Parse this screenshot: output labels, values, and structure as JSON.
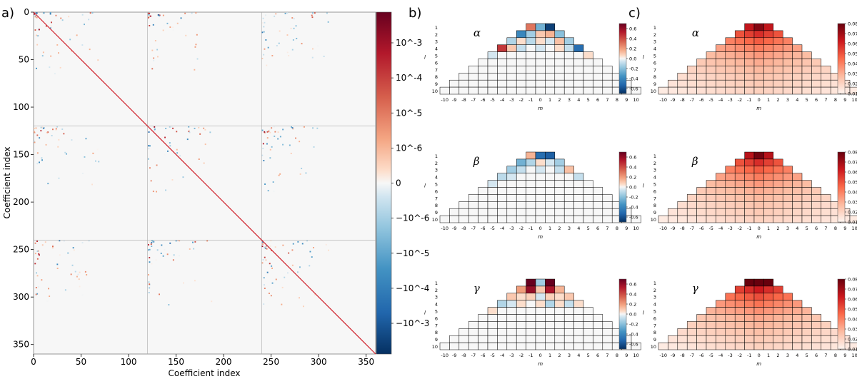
{
  "chart_data": [
    {
      "panel": "a)",
      "type": "heatmap",
      "title": "",
      "xlabel": "Coefficient index",
      "ylabel": "Coefficient index",
      "xlim": [
        0,
        360
      ],
      "ylim": [
        360,
        0
      ],
      "x_ticks": [
        "0",
        "50",
        "100",
        "150",
        "200",
        "250",
        "300",
        "350"
      ],
      "y_ticks": [
        "0",
        "50",
        "100",
        "150",
        "200",
        "250",
        "300",
        "350"
      ],
      "block_boundaries": [
        120,
        240
      ],
      "diagonal": "strong positive",
      "colorbar": {
        "scale": "symlog",
        "cmap": "RdBu_r",
        "ticks": [
          "10^-3",
          "10^-4",
          "10^-5",
          "10^-6",
          "0",
          "−10^-6",
          "−10^-5",
          "−10^-4",
          "−10^-3"
        ]
      }
    },
    {
      "panel": "b)",
      "type": "heatmap",
      "description_axis_x": "m",
      "description_axis_y": "l",
      "xlabel": "m",
      "ylabel": "l",
      "m_ticks": [
        "-10",
        "-9",
        "-8",
        "-7",
        "-6",
        "-5",
        "-4",
        "-3",
        "-2",
        "-1",
        "0",
        "1",
        "2",
        "3",
        "4",
        "5",
        "6",
        "7",
        "8",
        "9",
        "10"
      ],
      "l_ticks": [
        "1",
        "2",
        "3",
        "4",
        "5",
        "6",
        "7",
        "8",
        "9",
        "10"
      ],
      "colorbar": {
        "cmap": "RdBu_r",
        "vmin": -0.7,
        "vmax": 0.7,
        "ticks": [
          "0.6",
          "0.4",
          "0.2",
          "0.0",
          "-0.2",
          "-0.4",
          "-0.6"
        ]
      },
      "series": [
        {
          "name": "α",
          "cells": [
            [
              1,
              -1,
              0.3
            ],
            [
              1,
              0,
              -0.25
            ],
            [
              1,
              1,
              -0.65
            ],
            [
              2,
              -2,
              -0.4
            ],
            [
              2,
              -1,
              -0.15
            ],
            [
              2,
              0,
              0.1
            ],
            [
              2,
              1,
              0.15
            ],
            [
              2,
              2,
              -0.2
            ],
            [
              3,
              -3,
              -0.12
            ],
            [
              3,
              -2,
              0.05
            ],
            [
              3,
              -1,
              -0.1
            ],
            [
              3,
              0,
              0.05
            ],
            [
              3,
              1,
              -0.05
            ],
            [
              3,
              2,
              0.12
            ],
            [
              3,
              3,
              -0.15
            ],
            [
              4,
              -4,
              0.45
            ],
            [
              4,
              -3,
              0.1
            ],
            [
              4,
              -2,
              -0.08
            ],
            [
              4,
              0,
              -0.05
            ],
            [
              4,
              2,
              0.05
            ],
            [
              4,
              3,
              -0.08
            ],
            [
              4,
              4,
              -0.5
            ],
            [
              5,
              -5,
              -0.05
            ],
            [
              5,
              5,
              0.05
            ]
          ]
        },
        {
          "name": "β",
          "cells": [
            [
              1,
              -1,
              0.15
            ],
            [
              1,
              0,
              -0.5
            ],
            [
              1,
              1,
              -0.55
            ],
            [
              2,
              -2,
              -0.25
            ],
            [
              2,
              -1,
              -0.12
            ],
            [
              2,
              0,
              0.05
            ],
            [
              2,
              1,
              -0.05
            ],
            [
              2,
              2,
              -0.15
            ],
            [
              3,
              -3,
              -0.15
            ],
            [
              3,
              -2,
              -0.08
            ],
            [
              3,
              0,
              -0.05
            ],
            [
              3,
              2,
              -0.08
            ],
            [
              3,
              3,
              0.12
            ],
            [
              4,
              -4,
              -0.1
            ],
            [
              4,
              -3,
              -0.05
            ],
            [
              4,
              4,
              -0.08
            ],
            [
              5,
              -5,
              -0.05
            ]
          ]
        },
        {
          "name": "γ",
          "cells": [
            [
              1,
              -1,
              0.7
            ],
            [
              1,
              0,
              -0.15
            ],
            [
              1,
              1,
              0.7
            ],
            [
              2,
              -2,
              0.2
            ],
            [
              2,
              -1,
              0.6
            ],
            [
              2,
              0,
              0.1
            ],
            [
              2,
              1,
              0.55
            ],
            [
              2,
              2,
              0.15
            ],
            [
              3,
              -3,
              0.1
            ],
            [
              3,
              -2,
              0.05
            ],
            [
              3,
              -1,
              0.08
            ],
            [
              3,
              0,
              -0.05
            ],
            [
              3,
              1,
              0.08
            ],
            [
              3,
              2,
              0.05
            ],
            [
              3,
              3,
              0.1
            ],
            [
              4,
              -4,
              -0.12
            ],
            [
              4,
              -3,
              -0.05
            ],
            [
              4,
              -2,
              0.05
            ],
            [
              4,
              0,
              0.05
            ],
            [
              4,
              1,
              -0.12
            ],
            [
              4,
              2,
              0.05
            ],
            [
              4,
              3,
              -0.08
            ],
            [
              4,
              4,
              0.05
            ],
            [
              5,
              -5,
              0.05
            ]
          ]
        }
      ]
    },
    {
      "panel": "c)",
      "type": "heatmap",
      "xlabel": "m",
      "ylabel": "l",
      "m_ticks": [
        "-10",
        "-9",
        "-8",
        "-7",
        "-6",
        "-5",
        "-4",
        "-3",
        "-2",
        "-1",
        "0",
        "1",
        "2",
        "3",
        "4",
        "5",
        "6",
        "7",
        "8",
        "9",
        "10"
      ],
      "l_ticks": [
        "1",
        "2",
        "3",
        "4",
        "5",
        "6",
        "7",
        "8",
        "9",
        "10"
      ],
      "colorbar": {
        "cmap": "Reds",
        "vmin": 0.01,
        "vmax": 0.08,
        "ticks": [
          "0.08",
          "0.07",
          "0.06",
          "0.05",
          "0.04",
          "0.03",
          "0.02",
          "0.01"
        ]
      },
      "series": [
        {
          "name": "α",
          "l_base": [
            0.064,
            0.05,
            0.04,
            0.033,
            0.027,
            0.023,
            0.02,
            0.017,
            0.015,
            0.013
          ],
          "center_bonus": 0.008,
          "peaks": [
            [
              1,
              0,
              0.075
            ]
          ]
        },
        {
          "name": "β",
          "l_base": [
            0.066,
            0.05,
            0.04,
            0.033,
            0.027,
            0.023,
            0.02,
            0.017,
            0.015,
            0.013
          ],
          "center_bonus": 0.008,
          "peaks": [
            [
              1,
              0,
              0.078
            ]
          ]
        },
        {
          "name": "γ",
          "l_base": [
            0.072,
            0.054,
            0.043,
            0.035,
            0.029,
            0.024,
            0.021,
            0.018,
            0.015,
            0.013
          ],
          "center_bonus": 0.008,
          "peaks": [
            [
              1,
              -1,
              0.083
            ],
            [
              1,
              1,
              0.083
            ]
          ]
        }
      ]
    }
  ]
}
